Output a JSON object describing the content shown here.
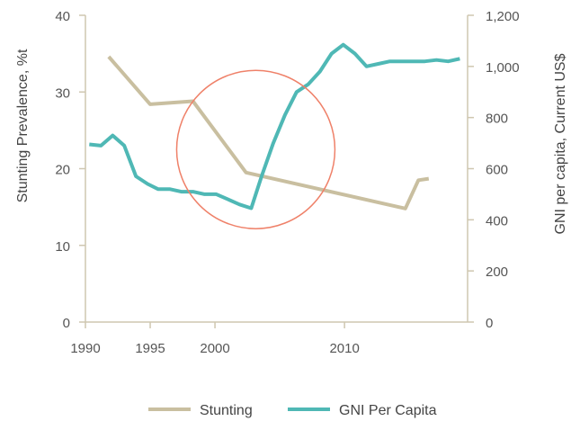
{
  "chart_data": {
    "type": "line",
    "x_axis": {
      "ticks": [
        1990,
        1995,
        2000,
        2010
      ],
      "range": [
        1990,
        2019.5
      ]
    },
    "y_left": {
      "label": "Stunting Prevalence, %t",
      "range": [
        0,
        40
      ],
      "ticks": [
        0,
        10,
        20,
        30,
        40
      ]
    },
    "y_right": {
      "label": "GNI per capita, Current US$",
      "range": [
        0,
        1200
      ],
      "ticks": [
        "0",
        "200",
        "400",
        "600",
        "800",
        "1,000",
        "1,200"
      ],
      "tick_values": [
        0,
        200,
        400,
        600,
        800,
        1000,
        1200
      ]
    },
    "series": [
      {
        "name": "Stunting",
        "axis": "left",
        "color": "#c9bfa0",
        "x": [
          1991.8,
          1995,
          1998.3,
          2002.4,
          2014.7,
          2015.7,
          2016.5
        ],
        "y": [
          34.6,
          28.4,
          28.8,
          19.5,
          14.8,
          18.5,
          18.7
        ]
      },
      {
        "name": "GNI Per Capita",
        "axis": "right",
        "color": "#4fb8b5",
        "x": [
          1990.3,
          1991.2,
          1992.1,
          1993,
          1993.9,
          1994.8,
          1995.6,
          1996.5,
          1997.4,
          1998.3,
          1999.2,
          2000.1,
          2001,
          2001.9,
          2002.8,
          2003.6,
          2004.5,
          2005.4,
          2006.3,
          2007.2,
          2008.1,
          2009,
          2009.9,
          2010.8,
          2011.7,
          2012.6,
          2013.5,
          2014.4,
          2015.3,
          2016.2,
          2017.1,
          2018,
          2018.9
        ],
        "y": [
          695,
          690,
          730,
          690,
          570,
          540,
          520,
          520,
          510,
          510,
          500,
          500,
          480,
          460,
          445,
          570,
          700,
          810,
          900,
          930,
          980,
          1050,
          1085,
          1050,
          1000,
          1010,
          1020,
          1020,
          1020,
          1020,
          1025,
          1020,
          1030
        ]
      }
    ],
    "annotation": {
      "type": "circle",
      "color": "#ef8169"
    },
    "legend": {
      "position": "bottom"
    },
    "grid": false
  }
}
